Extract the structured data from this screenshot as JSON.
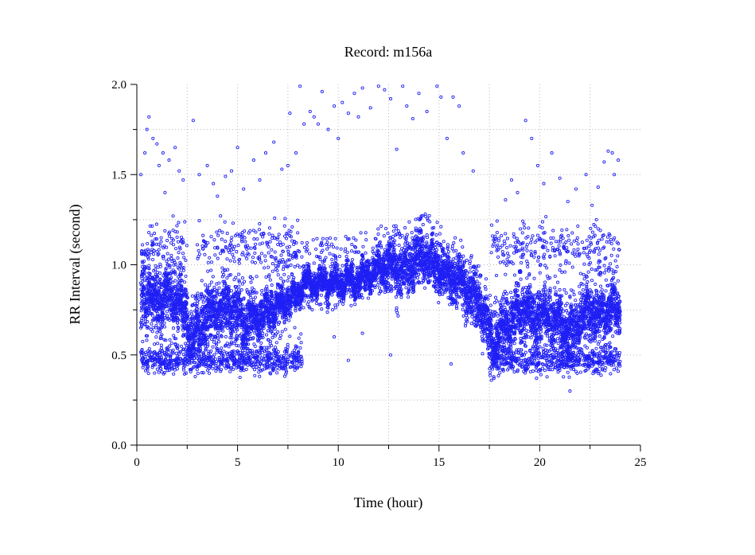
{
  "chart_data": {
    "type": "scatter",
    "title": "Record:  m156a",
    "xlabel": "Time (hour)",
    "ylabel": "RR Interval (second)",
    "xlim": [
      0,
      25
    ],
    "ylim": [
      0,
      2.0
    ],
    "x_ticks": [
      "0",
      "5",
      "10",
      "15",
      "20",
      "25"
    ],
    "y_ticks": [
      "0.0",
      "0.5",
      "1.0",
      "1.5",
      "2.0"
    ],
    "grid": true,
    "marker": "hollow-circle",
    "point_color": "#1f1ff5",
    "series": [
      {
        "trend": [
          [
            0.2,
            0.82
          ],
          [
            0.6,
            0.85
          ],
          [
            1.0,
            0.8
          ],
          [
            1.5,
            0.84
          ],
          [
            2.0,
            0.8
          ],
          [
            2.4,
            0.72
          ],
          [
            2.7,
            0.58
          ],
          [
            3.0,
            0.62
          ],
          [
            3.4,
            0.72
          ],
          [
            4.0,
            0.74
          ],
          [
            4.6,
            0.76
          ],
          [
            5.0,
            0.72
          ],
          [
            5.4,
            0.66
          ],
          [
            6.0,
            0.72
          ],
          [
            6.5,
            0.74
          ],
          [
            7.0,
            0.78
          ],
          [
            7.5,
            0.8
          ],
          [
            7.9,
            0.82
          ],
          [
            8.3,
            0.9
          ],
          [
            9.0,
            0.9
          ],
          [
            10.0,
            0.9
          ],
          [
            11.0,
            0.92
          ],
          [
            11.5,
            0.95
          ],
          [
            12.0,
            0.98
          ],
          [
            12.6,
            1.0
          ],
          [
            13.2,
            0.95
          ],
          [
            13.8,
            1.02
          ],
          [
            14.2,
            1.05
          ],
          [
            14.8,
            1.0
          ],
          [
            15.3,
            0.95
          ],
          [
            15.8,
            0.92
          ],
          [
            16.4,
            0.85
          ],
          [
            16.9,
            0.8
          ],
          [
            17.3,
            0.7
          ],
          [
            17.7,
            0.55
          ],
          [
            18.0,
            0.6
          ],
          [
            18.5,
            0.68
          ],
          [
            19.2,
            0.75
          ],
          [
            19.8,
            0.7
          ],
          [
            20.5,
            0.72
          ],
          [
            21.0,
            0.68
          ],
          [
            21.5,
            0.62
          ],
          [
            22.0,
            0.7
          ],
          [
            22.5,
            0.74
          ],
          [
            23.0,
            0.72
          ],
          [
            23.5,
            0.76
          ],
          [
            24.0,
            0.75
          ]
        ],
        "spread": [
          [
            0.0,
            0.14
          ],
          [
            2.5,
            0.12
          ],
          [
            5.0,
            0.13
          ],
          [
            8.0,
            0.06
          ],
          [
            11.5,
            0.07
          ],
          [
            13.0,
            0.12
          ],
          [
            16.5,
            0.12
          ],
          [
            17.5,
            0.12
          ],
          [
            20.0,
            0.13
          ],
          [
            24.0,
            0.11
          ]
        ],
        "low_band": {
          "value": 0.47,
          "spread": 0.035,
          "ranges": [
            [
              0.2,
              8.2
            ],
            [
              17.5,
              24.0
            ]
          ]
        },
        "high_band": {
          "value": 1.1,
          "spread": 0.06,
          "ranges": [
            [
              0.2,
              2.5
            ],
            [
              3.0,
              8.0
            ],
            [
              17.6,
              24.0
            ]
          ]
        },
        "outliers": [
          [
            0.2,
            1.5
          ],
          [
            0.4,
            1.62
          ],
          [
            0.5,
            1.75
          ],
          [
            0.6,
            1.82
          ],
          [
            0.8,
            1.7
          ],
          [
            1.0,
            1.67
          ],
          [
            1.1,
            1.55
          ],
          [
            1.3,
            1.62
          ],
          [
            1.4,
            1.4
          ],
          [
            1.6,
            1.58
          ],
          [
            1.8,
            1.27
          ],
          [
            1.9,
            1.65
          ],
          [
            2.1,
            1.52
          ],
          [
            2.3,
            1.47
          ],
          [
            2.8,
            1.8
          ],
          [
            3.1,
            1.5
          ],
          [
            3.5,
            1.55
          ],
          [
            3.8,
            1.45
          ],
          [
            4.0,
            1.38
          ],
          [
            4.4,
            1.49
          ],
          [
            4.7,
            1.52
          ],
          [
            5.0,
            1.65
          ],
          [
            5.3,
            1.42
          ],
          [
            5.8,
            1.58
          ],
          [
            6.1,
            1.47
          ],
          [
            6.4,
            1.62
          ],
          [
            6.8,
            1.68
          ],
          [
            7.2,
            1.53
          ],
          [
            7.5,
            1.55
          ],
          [
            7.9,
            1.62
          ],
          [
            7.6,
            1.84
          ],
          [
            8.1,
            1.99
          ],
          [
            8.3,
            1.78
          ],
          [
            8.6,
            1.85
          ],
          [
            8.8,
            1.82
          ],
          [
            9.0,
            1.78
          ],
          [
            9.2,
            1.96
          ],
          [
            9.5,
            1.75
          ],
          [
            9.8,
            1.88
          ],
          [
            10.0,
            1.7
          ],
          [
            10.2,
            1.9
          ],
          [
            10.5,
            1.84
          ],
          [
            10.8,
            1.95
          ],
          [
            11.0,
            1.82
          ],
          [
            11.2,
            1.98
          ],
          [
            11.6,
            1.87
          ],
          [
            12.0,
            1.99
          ],
          [
            12.3,
            1.97
          ],
          [
            12.6,
            1.92
          ],
          [
            12.9,
            1.64
          ],
          [
            13.2,
            1.99
          ],
          [
            13.4,
            1.88
          ],
          [
            13.7,
            1.81
          ],
          [
            14.0,
            1.95
          ],
          [
            14.4,
            1.85
          ],
          [
            14.9,
            1.99
          ],
          [
            15.1,
            1.93
          ],
          [
            15.4,
            1.7
          ],
          [
            15.7,
            1.93
          ],
          [
            16.0,
            1.88
          ],
          [
            16.2,
            1.62
          ],
          [
            16.7,
            1.52
          ],
          [
            18.3,
            1.36
          ],
          [
            18.6,
            1.47
          ],
          [
            18.9,
            1.4
          ],
          [
            19.3,
            1.8
          ],
          [
            19.6,
            1.7
          ],
          [
            19.9,
            1.55
          ],
          [
            20.2,
            1.45
          ],
          [
            20.6,
            1.62
          ],
          [
            21.0,
            1.48
          ],
          [
            21.4,
            1.35
          ],
          [
            21.8,
            1.42
          ],
          [
            22.3,
            1.5
          ],
          [
            22.6,
            1.33
          ],
          [
            22.9,
            1.43
          ],
          [
            23.2,
            1.57
          ],
          [
            23.4,
            1.63
          ],
          [
            23.6,
            1.62
          ],
          [
            23.7,
            1.5
          ],
          [
            23.9,
            1.58
          ],
          [
            0.3,
            0.43
          ],
          [
            2.9,
            0.38
          ],
          [
            17.6,
            0.36
          ],
          [
            21.5,
            0.3
          ],
          [
            10.5,
            0.47
          ],
          [
            12.6,
            0.5
          ],
          [
            15.6,
            0.45
          ],
          [
            11.2,
            0.62
          ],
          [
            9.8,
            0.6
          ]
        ]
      }
    ]
  }
}
